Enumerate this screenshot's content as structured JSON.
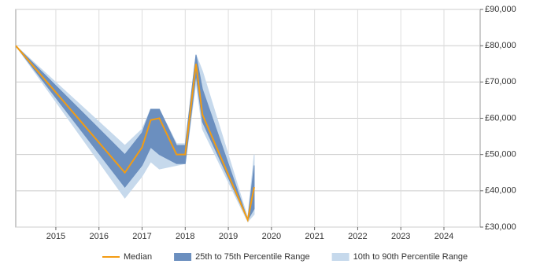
{
  "chart_data": {
    "type": "line",
    "x": [
      2014.07,
      2016.6,
      2017.0,
      2017.2,
      2017.4,
      2017.8,
      2018.0,
      2018.25,
      2018.4,
      2019.45,
      2019.6
    ],
    "series": [
      {
        "name": "Median",
        "color": "#f39c12",
        "values": [
          80000,
          45000,
          52000,
          59500,
          60000,
          50000,
          50000,
          75000,
          61000,
          32000,
          41000
        ]
      }
    ],
    "bands": [
      {
        "name": "10th to 90th Percentile Range",
        "color": "#c6d9ec",
        "lower": [
          80000,
          38000,
          44000,
          48000,
          46000,
          47000,
          47500,
          70000,
          57000,
          31500,
          33500
        ],
        "upper": [
          80000,
          52500,
          57000,
          62500,
          62500,
          53000,
          53000,
          77500,
          73000,
          32500,
          50000
        ]
      },
      {
        "name": "25th to 75th Percentile Range",
        "color": "#6b8fbf",
        "lower": [
          80000,
          41000,
          47000,
          52000,
          50000,
          47500,
          47500,
          72000,
          59000,
          32000,
          35000
        ],
        "upper": [
          80000,
          50000,
          56000,
          62500,
          62500,
          52500,
          52500,
          77500,
          68000,
          32000,
          47000
        ]
      }
    ],
    "xlim": [
      2014.07,
      2024.84
    ],
    "xticks": [
      2015,
      2016,
      2017,
      2018,
      2019,
      2020,
      2021,
      2022,
      2023,
      2024
    ],
    "ylim": [
      30000,
      90000
    ],
    "yticks": [
      {
        "value": 30000,
        "label": "£30,000"
      },
      {
        "value": 40000,
        "label": "£40,000"
      },
      {
        "value": 50000,
        "label": "£50,000"
      },
      {
        "value": 60000,
        "label": "£60,000"
      },
      {
        "value": 70000,
        "label": "£70,000"
      },
      {
        "value": 80000,
        "label": "£80,000"
      },
      {
        "value": 90000,
        "label": "£90,000"
      }
    ],
    "grid": true
  }
}
